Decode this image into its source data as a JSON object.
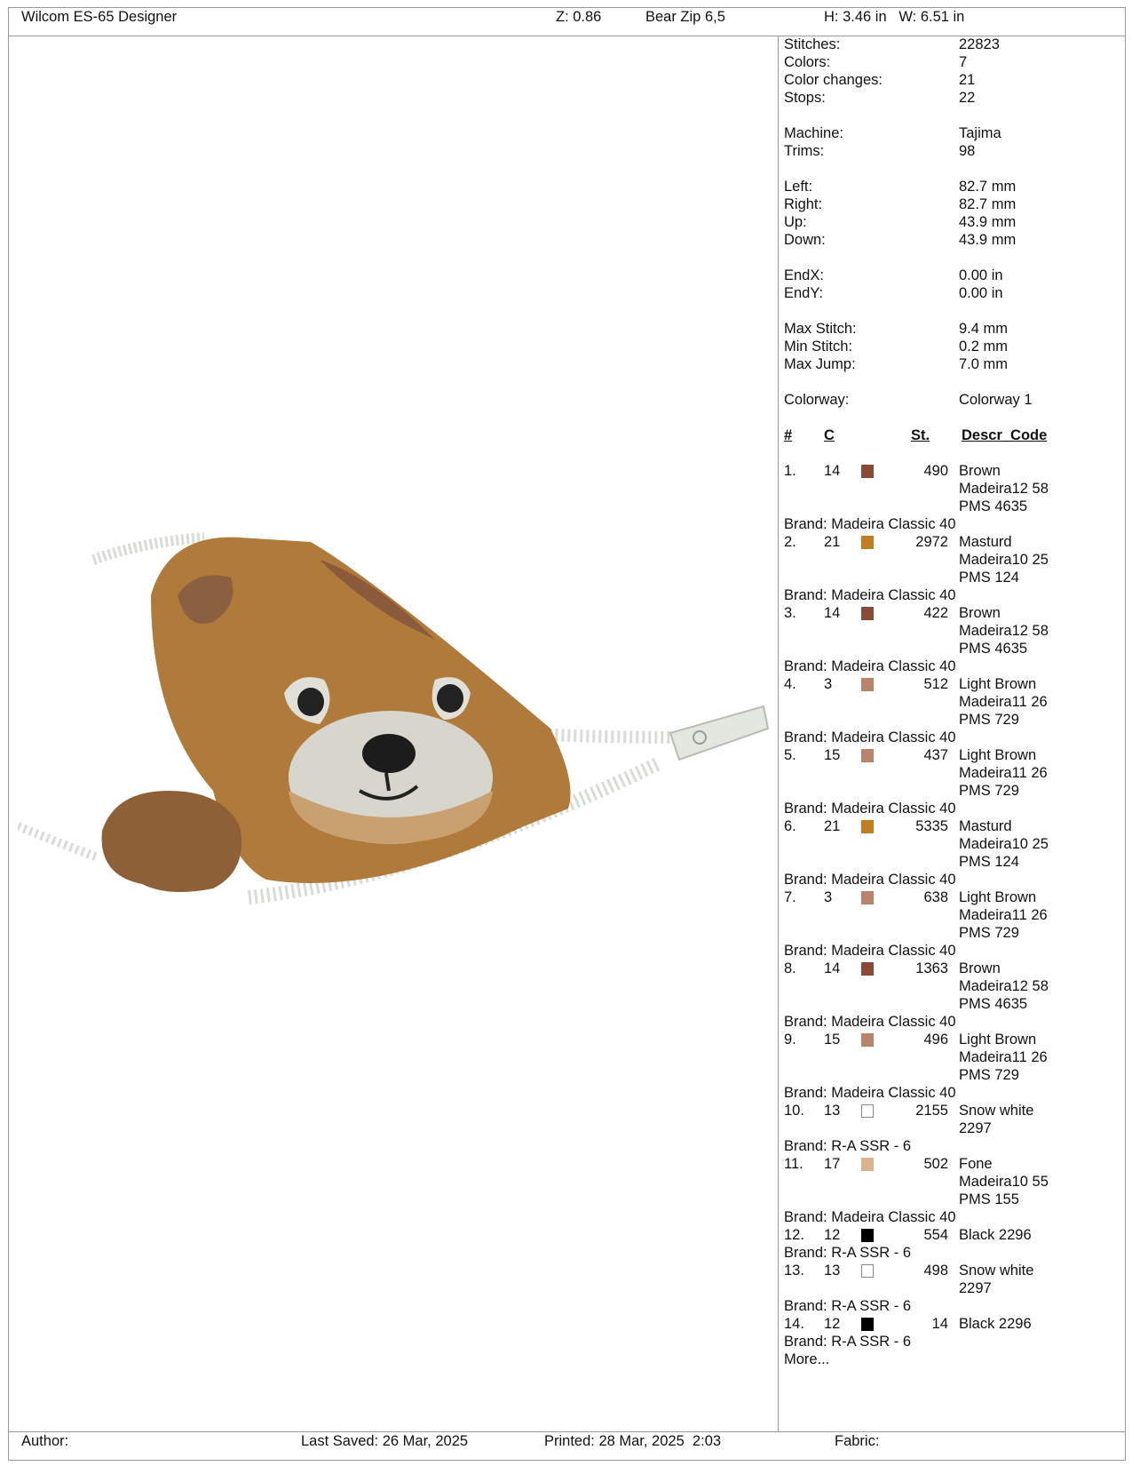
{
  "header": {
    "app": "Wilcom ES-65 Designer",
    "zoom": "Z: 0.86",
    "design": "Bear Zip 6,5",
    "size": "H: 3.46 in   W: 6.51 in"
  },
  "stats": [
    {
      "label": "Stitches:",
      "value": "22823"
    },
    {
      "label": "Colors:",
      "value": "7"
    },
    {
      "label": "Color changes:",
      "value": "21"
    },
    {
      "label": "Stops:",
      "value": "22"
    },
    null,
    {
      "label": "Machine:",
      "value": "Tajima"
    },
    {
      "label": "Trims:",
      "value": "98"
    },
    null,
    {
      "label": "Left:",
      "value": "82.7 mm"
    },
    {
      "label": "Right:",
      "value": "82.7 mm"
    },
    {
      "label": "Up:",
      "value": "43.9 mm"
    },
    {
      "label": "Down:",
      "value": "43.9 mm"
    },
    null,
    {
      "label": "EndX:",
      "value": "0.00 in"
    },
    {
      "label": "EndY:",
      "value": "0.00 in"
    },
    null,
    {
      "label": "Max Stitch:",
      "value": "9.4 mm"
    },
    {
      "label": "Min Stitch:",
      "value": "0.2 mm"
    },
    {
      "label": "Max Jump:",
      "value": "7.0 mm"
    },
    null,
    {
      "label": "Colorway:",
      "value": "Colorway 1"
    }
  ],
  "table_headers": {
    "num": "#",
    "c": "C",
    "st": "St.",
    "descr": "Descr_Code"
  },
  "threads": [
    {
      "num": "1.",
      "c": "14",
      "color": "#8b4a38",
      "st": "490",
      "descr": [
        "Brown",
        "Madeira12 58",
        "PMS 4635"
      ],
      "brand": "Brand: Madeira Classic 40"
    },
    {
      "num": "2.",
      "c": "21",
      "color": "#c27c22",
      "st": "2972",
      "descr": [
        "Masturd",
        "Madeira10 25",
        "PMS 124"
      ],
      "brand": "Brand: Madeira Classic 40"
    },
    {
      "num": "3.",
      "c": "14",
      "color": "#8b4a38",
      "st": "422",
      "descr": [
        "Brown",
        "Madeira12 58",
        "PMS 4635"
      ],
      "brand": "Brand: Madeira Classic 40"
    },
    {
      "num": "4.",
      "c": "3",
      "color": "#b8836a",
      "st": "512",
      "descr": [
        "Light Brown",
        "Madeira11 26",
        "PMS 729"
      ],
      "brand": "Brand: Madeira Classic 40"
    },
    {
      "num": "5.",
      "c": "15",
      "color": "#b8836a",
      "st": "437",
      "descr": [
        "Light Brown",
        "Madeira11 26",
        "PMS 729"
      ],
      "brand": "Brand: Madeira Classic 40"
    },
    {
      "num": "6.",
      "c": "21",
      "color": "#c27c22",
      "st": "5335",
      "descr": [
        "Masturd",
        "Madeira10 25",
        "PMS 124"
      ],
      "brand": "Brand: Madeira Classic 40"
    },
    {
      "num": "7.",
      "c": "3",
      "color": "#b8836a",
      "st": "638",
      "descr": [
        "Light Brown",
        "Madeira11 26",
        "PMS 729"
      ],
      "brand": "Brand: Madeira Classic 40"
    },
    {
      "num": "8.",
      "c": "14",
      "color": "#8b4a38",
      "st": "1363",
      "descr": [
        "Brown",
        "Madeira12 58",
        "PMS 4635"
      ],
      "brand": "Brand: Madeira Classic 40"
    },
    {
      "num": "9.",
      "c": "15",
      "color": "#b8836a",
      "st": "496",
      "descr": [
        "Light Brown",
        "Madeira11 26",
        "PMS 729"
      ],
      "brand": "Brand: Madeira Classic 40"
    },
    {
      "num": "10.",
      "c": "13",
      "color": "#ffffff",
      "st": "2155",
      "descr": [
        "Snow white",
        "2297"
      ],
      "brand": "Brand: R-A SSR - 6"
    },
    {
      "num": "11.",
      "c": "17",
      "color": "#d8b38e",
      "st": "502",
      "descr": [
        "Fone",
        "Madeira10 55",
        "PMS 155"
      ],
      "brand": "Brand: Madeira Classic 40"
    },
    {
      "num": "12.",
      "c": "12",
      "color": "#000000",
      "st": "554",
      "descr": [
        "Black 2296"
      ],
      "brand": "Brand: R-A SSR - 6"
    },
    {
      "num": "13.",
      "c": "13",
      "color": "#ffffff",
      "st": "498",
      "descr": [
        "Snow white",
        "2297"
      ],
      "brand": "Brand: R-A SSR - 6"
    },
    {
      "num": "14.",
      "c": "12",
      "color": "#000000",
      "st": "14",
      "descr": [
        "Black 2296"
      ],
      "brand": "Brand: R-A SSR - 6"
    }
  ],
  "more": "More...",
  "footer": {
    "author": "Author:",
    "saved": "Last Saved: 26 Mar, 2025",
    "printed": "Printed: 28 Mar, 2025  2:03",
    "fabric": "Fabric:"
  }
}
